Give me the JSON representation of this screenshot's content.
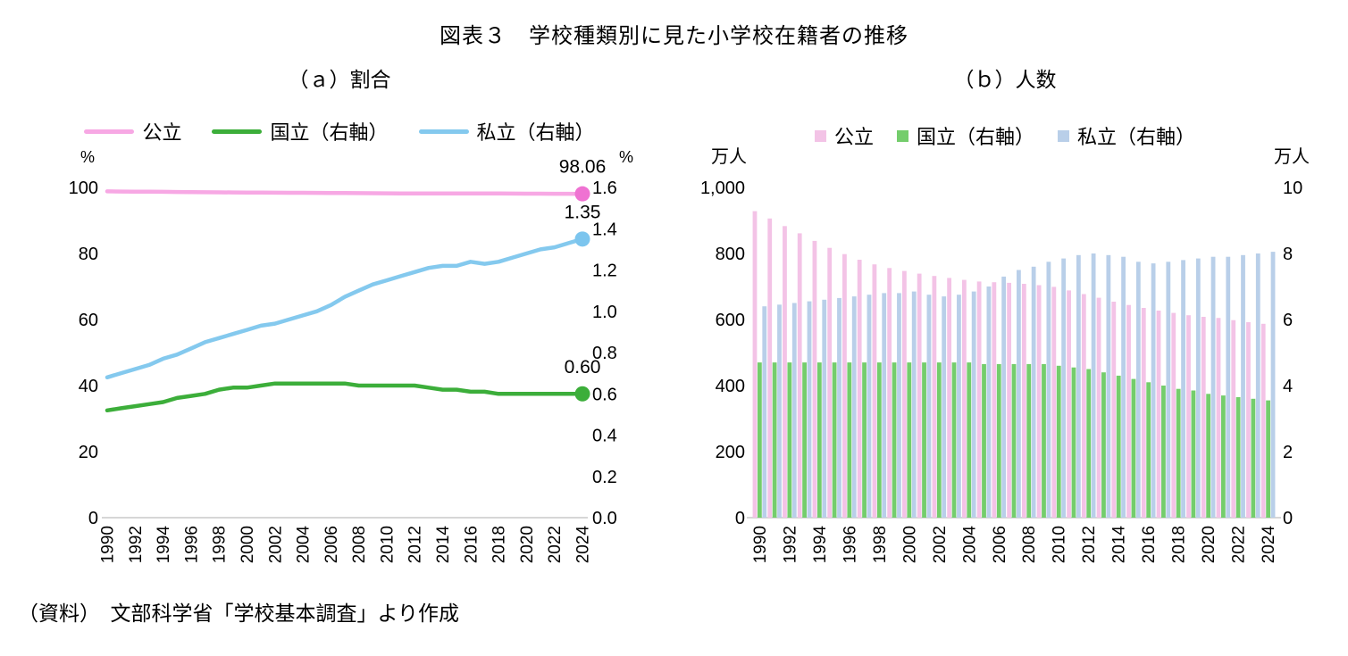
{
  "title": "図表３　学校種類別に見た小学校在籍者の推移",
  "source": "（資料）　文部科学省「学校基本調査」より作成",
  "chart_data": [
    {
      "id": "ratio",
      "type": "line",
      "subtitle": "（ａ）割合",
      "x": [
        1990,
        1991,
        1992,
        1993,
        1994,
        1995,
        1996,
        1997,
        1998,
        1999,
        2000,
        2001,
        2002,
        2003,
        2004,
        2005,
        2006,
        2007,
        2008,
        2009,
        2010,
        2011,
        2012,
        2013,
        2014,
        2015,
        2016,
        2017,
        2018,
        2019,
        2020,
        2021,
        2022,
        2023,
        2024
      ],
      "x_tick_step": 2,
      "left_axis": {
        "unit": "%",
        "min": 0,
        "max": 100,
        "tick_values": [
          0,
          20,
          40,
          60,
          80,
          100
        ],
        "ticks": [
          "0",
          "20",
          "40",
          "60",
          "80",
          "100"
        ]
      },
      "right_axis": {
        "unit": "%",
        "min": 0,
        "max": 1.6,
        "tick_values": [
          0,
          0.2,
          0.4,
          0.6,
          0.8,
          1.0,
          1.2,
          1.4,
          1.6
        ],
        "ticks": [
          "0.0",
          "0.2",
          "0.4",
          "0.6",
          "0.8",
          "1.0",
          "1.2",
          "1.4",
          "1.6"
        ]
      },
      "series": [
        {
          "name": "公立",
          "slug": "public",
          "axis": "left",
          "color": "#f7a8e4",
          "marker_color": "#ef72d2",
          "end_label": "98.06",
          "values": [
            98.8,
            98.77,
            98.74,
            98.71,
            98.67,
            98.63,
            98.59,
            98.55,
            98.51,
            98.48,
            98.46,
            98.43,
            98.41,
            98.39,
            98.37,
            98.35,
            98.32,
            98.29,
            98.26,
            98.23,
            98.21,
            98.18,
            98.17,
            98.16,
            98.16,
            98.16,
            98.15,
            98.16,
            98.16,
            98.14,
            98.12,
            98.1,
            98.09,
            98.07,
            98.06
          ]
        },
        {
          "name": "国立（右軸）",
          "slug": "national",
          "axis": "right",
          "color": "#3cae3a",
          "marker_color": "#3cae3a",
          "end_label": "0.60",
          "values": [
            0.52,
            0.53,
            0.54,
            0.55,
            0.56,
            0.58,
            0.59,
            0.6,
            0.62,
            0.63,
            0.63,
            0.64,
            0.65,
            0.65,
            0.65,
            0.65,
            0.65,
            0.65,
            0.64,
            0.64,
            0.64,
            0.64,
            0.64,
            0.63,
            0.62,
            0.62,
            0.61,
            0.61,
            0.6,
            0.6,
            0.6,
            0.6,
            0.6,
            0.6,
            0.6
          ]
        },
        {
          "name": "私立（右軸）",
          "slug": "private",
          "axis": "right",
          "color": "#84c9ee",
          "marker_color": "#7cc5ee",
          "end_label": "1.35",
          "values": [
            0.68,
            0.7,
            0.72,
            0.74,
            0.77,
            0.79,
            0.82,
            0.85,
            0.87,
            0.89,
            0.91,
            0.93,
            0.94,
            0.96,
            0.98,
            1.0,
            1.03,
            1.07,
            1.1,
            1.13,
            1.15,
            1.17,
            1.19,
            1.21,
            1.22,
            1.22,
            1.24,
            1.23,
            1.24,
            1.26,
            1.28,
            1.3,
            1.31,
            1.33,
            1.35
          ]
        }
      ]
    },
    {
      "id": "counts",
      "type": "bar",
      "subtitle": "（ｂ）人数",
      "x": [
        1990,
        1991,
        1992,
        1993,
        1994,
        1995,
        1996,
        1997,
        1998,
        1999,
        2000,
        2001,
        2002,
        2003,
        2004,
        2005,
        2006,
        2007,
        2008,
        2009,
        2010,
        2011,
        2012,
        2013,
        2014,
        2015,
        2016,
        2017,
        2018,
        2019,
        2020,
        2021,
        2022,
        2023,
        2024
      ],
      "x_tick_step": 2,
      "left_axis": {
        "unit": "万人",
        "min": 0,
        "max": 1000,
        "tick_values": [
          0,
          200,
          400,
          600,
          800,
          1000
        ],
        "ticks": [
          "0",
          "200",
          "400",
          "600",
          "800",
          "1,000"
        ]
      },
      "right_axis": {
        "unit": "万人",
        "min": 0,
        "max": 10,
        "tick_values": [
          0,
          2,
          4,
          6,
          8,
          10
        ],
        "ticks": [
          "0",
          "2",
          "4",
          "6",
          "8",
          "10"
        ]
      },
      "series": [
        {
          "name": "公立",
          "slug": "public",
          "axis": "left",
          "color": "#f3c3e6",
          "values": [
            928,
            906,
            883,
            861,
            838,
            817,
            798,
            781,
            767,
            756,
            747,
            739,
            732,
            726,
            720,
            715,
            713,
            711,
            708,
            704,
            699,
            688,
            677,
            666,
            654,
            644,
            635,
            627,
            620,
            613,
            608,
            605,
            598,
            592,
            587
          ]
        },
        {
          "name": "国立（右軸）",
          "slug": "national",
          "axis": "right",
          "color": "#74cd6c",
          "values": [
            4.7,
            4.7,
            4.7,
            4.7,
            4.7,
            4.7,
            4.7,
            4.7,
            4.7,
            4.7,
            4.7,
            4.7,
            4.7,
            4.7,
            4.7,
            4.65,
            4.65,
            4.65,
            4.65,
            4.65,
            4.6,
            4.55,
            4.5,
            4.4,
            4.3,
            4.2,
            4.1,
            4.0,
            3.9,
            3.85,
            3.75,
            3.7,
            3.65,
            3.6,
            3.55
          ]
        },
        {
          "name": "私立（右軸）",
          "slug": "private",
          "axis": "right",
          "color": "#b9cfe9",
          "values": [
            6.4,
            6.45,
            6.5,
            6.55,
            6.6,
            6.65,
            6.7,
            6.75,
            6.8,
            6.8,
            6.85,
            6.75,
            6.7,
            6.75,
            6.85,
            7.0,
            7.3,
            7.5,
            7.6,
            7.75,
            7.85,
            7.95,
            8.0,
            7.95,
            7.9,
            7.75,
            7.7,
            7.75,
            7.8,
            7.85,
            7.9,
            7.9,
            7.95,
            8.0,
            8.05
          ]
        }
      ]
    }
  ]
}
